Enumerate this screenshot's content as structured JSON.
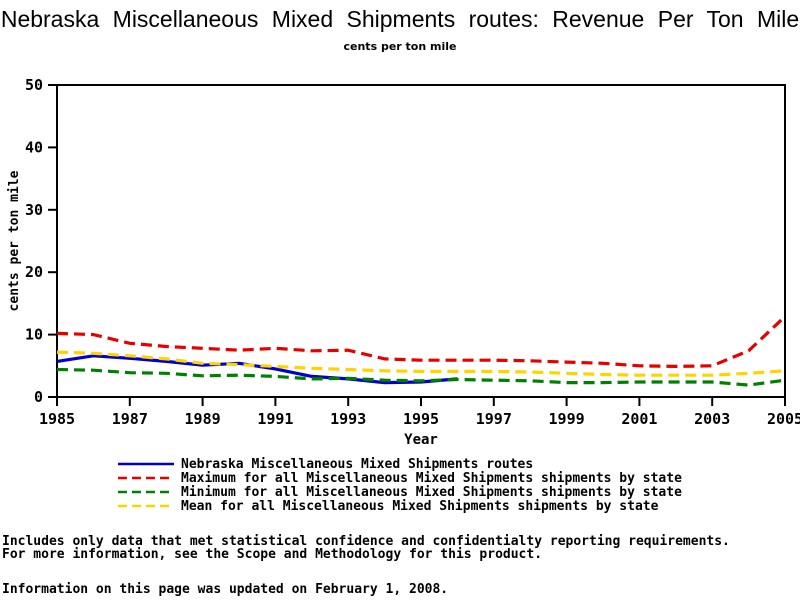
{
  "title": "Nebraska Miscellaneous Mixed Shipments routes: Revenue Per Ton Mile",
  "subtitle": "cents per ton mile",
  "chart_data": {
    "type": "line",
    "x": [
      1985,
      1986,
      1987,
      1988,
      1989,
      1990,
      1991,
      1992,
      1993,
      1994,
      1995,
      1996,
      1997,
      1998,
      1999,
      2000,
      2001,
      2002,
      2003,
      2004,
      2005
    ],
    "xticks": [
      1985,
      1987,
      1989,
      1991,
      1993,
      1995,
      1997,
      1999,
      2001,
      2003,
      2005
    ],
    "yticks": [
      0,
      10,
      20,
      30,
      40,
      50
    ],
    "ylim": [
      0,
      50
    ],
    "xlabel": "Year",
    "ylabel": "cents per ton mile",
    "grid": false,
    "legend_position": "bottom-left",
    "frame_color": "#000000",
    "series": [
      {
        "name": "Nebraska Miscellaneous Mixed Shipments routes",
        "color": "#0000CD",
        "style": "solid",
        "values": [
          5.7,
          6.6,
          6.2,
          5.7,
          5.1,
          5.4,
          4.5,
          3.3,
          2.9,
          2.3,
          2.4,
          2.9,
          null,
          null,
          null,
          null,
          null,
          null,
          null,
          null,
          null
        ]
      },
      {
        "name": "Maximum for all Miscellaneous Mixed Shipments shipments by state",
        "color": "#E60000",
        "style": "dashed",
        "values": [
          10.2,
          10.0,
          8.6,
          8.1,
          7.8,
          7.5,
          7.8,
          7.4,
          7.5,
          6.1,
          5.9,
          5.9,
          5.9,
          5.8,
          5.6,
          5.4,
          5.0,
          4.9,
          5.0,
          7.4,
          12.9
        ]
      },
      {
        "name": "Minimum for all Miscellaneous Mixed Shipments shipments by state",
        "color": "#008000",
        "style": "dashed",
        "values": [
          4.4,
          4.3,
          3.9,
          3.8,
          3.4,
          3.5,
          3.3,
          2.9,
          3.0,
          2.7,
          2.6,
          2.8,
          2.7,
          2.6,
          2.3,
          2.3,
          2.4,
          2.4,
          2.4,
          1.9,
          2.7
        ]
      },
      {
        "name": "Mean for all Miscellaneous Mixed Shipments shipments by state",
        "color": "#FFD300",
        "style": "dashed",
        "values": [
          7.2,
          7.0,
          6.6,
          6.1,
          5.4,
          5.2,
          4.9,
          4.6,
          4.4,
          4.2,
          4.1,
          4.1,
          4.1,
          4.0,
          3.8,
          3.6,
          3.5,
          3.5,
          3.5,
          3.8,
          4.2
        ]
      }
    ]
  },
  "footer": {
    "line1": "Includes only data that met statistical confidence and confidentialty reporting requirements.",
    "line2": "For more information, see the Scope and Methodology for this product.",
    "line3": "Information on this page was updated on February 1, 2008."
  }
}
